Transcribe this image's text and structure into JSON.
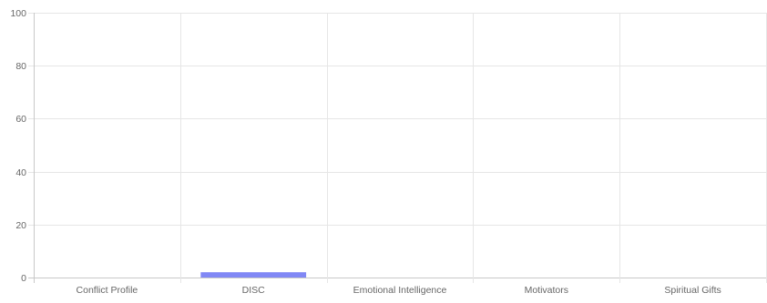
{
  "chart_data": {
    "type": "bar",
    "title": "",
    "xlabel": "",
    "ylabel": "",
    "categories": [
      "Conflict Profile",
      "DISC",
      "Emotional Intelligence",
      "Motivators",
      "Spiritual Gifts"
    ],
    "series": [
      {
        "values": [
          0,
          2,
          0,
          0,
          0
        ],
        "color": "#8188f5"
      }
    ],
    "ylim": [
      0,
      100
    ],
    "yticks": [
      0,
      20,
      40,
      60,
      80,
      100
    ],
    "grid": true,
    "legend": "none"
  }
}
